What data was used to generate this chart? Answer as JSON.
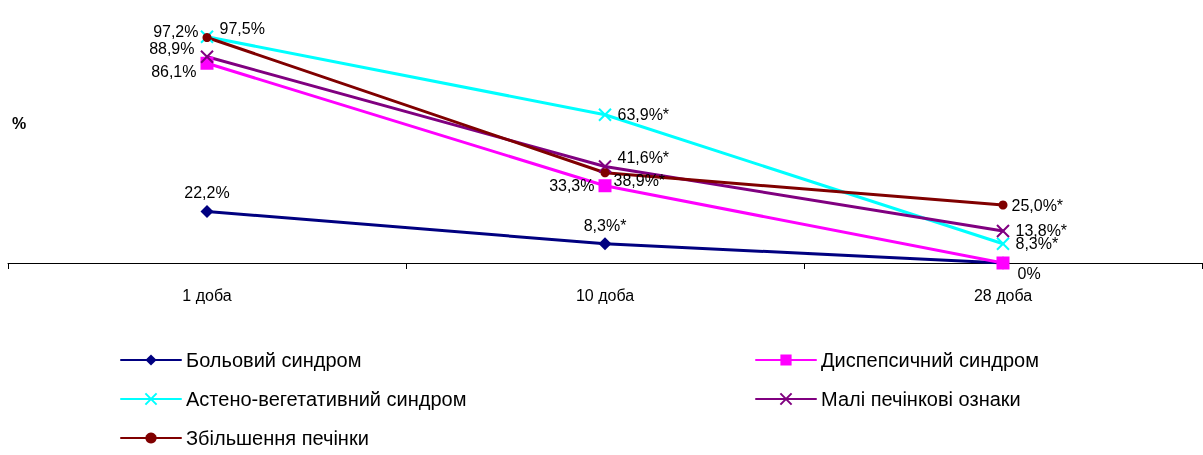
{
  "chart_data": {
    "type": "line",
    "ylabel": "%",
    "categories": [
      "1 доба",
      "10 доба",
      "28 доба"
    ],
    "tick_labels": "x",
    "grid": false,
    "legend": "bottom",
    "series": [
      {
        "name": "Больовий синдром",
        "color": "#000080",
        "marker": "diamond",
        "values": [
          22.2,
          8.3,
          0
        ],
        "value_labels": [
          "22,2%",
          "8,3%*",
          null
        ]
      },
      {
        "name": "Диспепсичний синдром",
        "color": "#ff00ff",
        "marker": "square",
        "values": [
          86.1,
          33.3,
          0
        ],
        "value_labels": [
          "86,1%",
          "33,3%",
          "0%"
        ]
      },
      {
        "name": "Астено-вегетативний синдром",
        "color": "#00ffff",
        "marker": "cross",
        "values": [
          97.5,
          63.9,
          8.3
        ],
        "value_labels": [
          "97,5%",
          "63,9%*",
          "8,3%*"
        ]
      },
      {
        "name": "Малі печінкові ознаки",
        "color": "#800080",
        "marker": "cross",
        "values": [
          88.9,
          41.6,
          13.8
        ],
        "value_labels": [
          "88,9%",
          "41,6%*",
          "13,8%*"
        ]
      },
      {
        "name": "Збільшення печінки",
        "color": "#800000",
        "marker": "circle",
        "values": [
          97.2,
          38.9,
          25.0
        ],
        "value_labels": [
          "97,2%",
          "38,9%*",
          "25,0%*"
        ]
      }
    ]
  }
}
